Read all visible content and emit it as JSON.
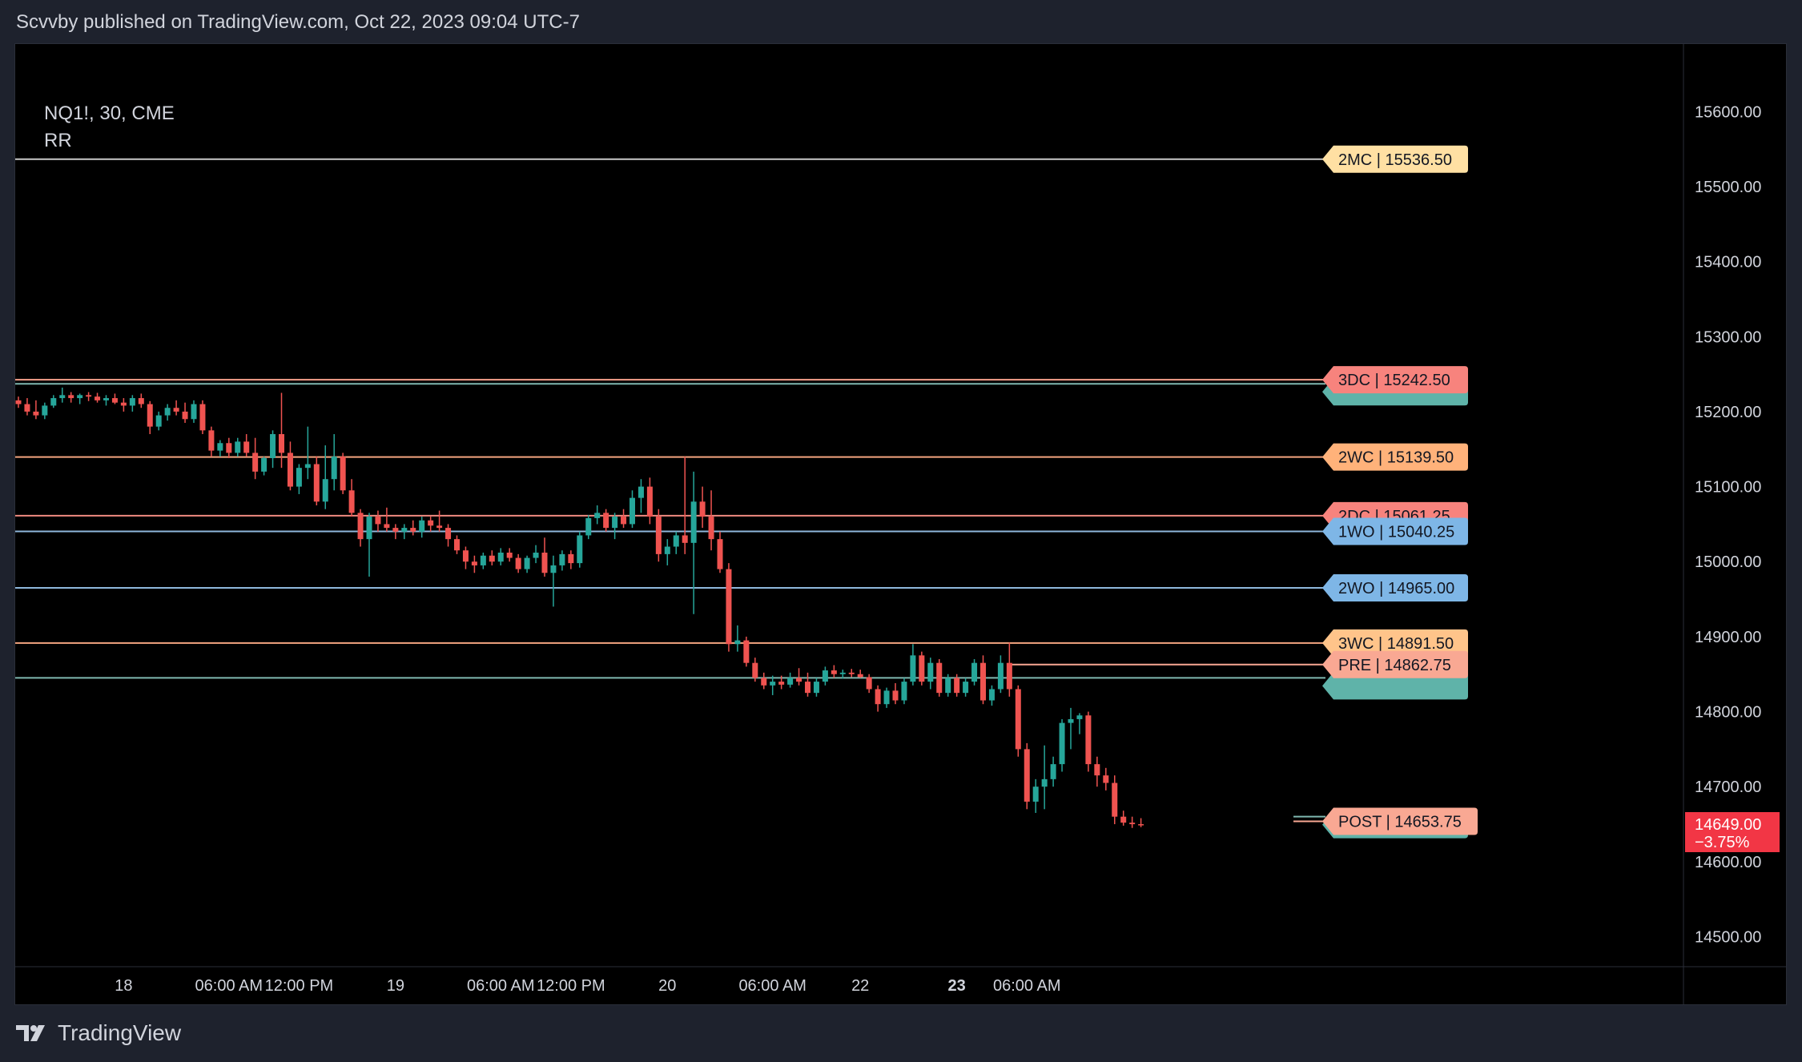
{
  "header": {
    "publish_line": "Scvvby published on TradingView.com, Oct 22, 2023 09:04 UTC-7"
  },
  "legend": {
    "symbol_line": "NQ1!, 30, CME",
    "indicator": "RR"
  },
  "footer": {
    "brand": "TradingView"
  },
  "colors": {
    "background": "#000000",
    "frame": "#1e222d",
    "up": "#26a69a",
    "down": "#ef5350",
    "axis_text": "#d1d4dc",
    "grid_border": "#2a2e39"
  },
  "chart_data": {
    "type": "candlestick",
    "symbol": "NQ1!",
    "interval": "30",
    "exchange": "CME",
    "ylim": [
      14460,
      15690
    ],
    "y_ticks": [
      14500,
      14600,
      14700,
      14800,
      14900,
      15000,
      15100,
      15200,
      15300,
      15400,
      15500,
      15600
    ],
    "y_tick_labels": [
      "14500.00",
      "14600.00",
      "14700.00",
      "14800.00",
      "14900.00",
      "15000.00",
      "15100.00",
      "15200.00",
      "15300.00",
      "15400.00",
      "15500.00",
      "15600.00"
    ],
    "x_ticks": [
      {
        "label": "18",
        "bold": false
      },
      {
        "label": "06:00 AM",
        "bold": false
      },
      {
        "label": "12:00 PM",
        "bold": false
      },
      {
        "label": "19",
        "bold": false
      },
      {
        "label": "06:00 AM",
        "bold": false
      },
      {
        "label": "12:00 PM",
        "bold": false
      },
      {
        "label": "20",
        "bold": false
      },
      {
        "label": "06:00 AM",
        "bold": false
      },
      {
        "label": "22",
        "bold": false
      },
      {
        "label": "23",
        "bold": true
      },
      {
        "label": "06:00 AM",
        "bold": false
      }
    ],
    "x_tick_bar_index": [
      12,
      24,
      32,
      43,
      55,
      63,
      74,
      86,
      96,
      107,
      115
    ],
    "current_price": {
      "value": 14649.0,
      "label": "14649.00",
      "change_label": "−3.75%",
      "color": "#f23645"
    },
    "levels": [
      {
        "name": "2MC",
        "value": 15536.5,
        "label": "2MC | 15536.50",
        "color": "#ffe0a3",
        "line_color": "#c8c8c8",
        "label_shown": true
      },
      {
        "name": "3DC",
        "value": 15242.5,
        "label": "3DC | 15242.50",
        "color": "#f7837d",
        "line_color": "#f7a08b",
        "label_shown": true
      },
      {
        "name": "teal-upper",
        "value": 15237.0,
        "label": "",
        "color": "#5fb3a9",
        "line_color": "#7fb8b0",
        "label_shown": false
      },
      {
        "name": "2WC",
        "value": 15139.5,
        "label": "2WC | 15139.50",
        "color": "#ffb27a",
        "line_color": "#f4a580",
        "label_shown": true
      },
      {
        "name": "2DC",
        "value": 15061.25,
        "label": "2DC | 15061.25",
        "color": "#f7837d",
        "line_color": "#f08a80",
        "label_shown": true
      },
      {
        "name": "1WO",
        "value": 15040.25,
        "label": "1WO | 15040.25",
        "color": "#7eb6e6",
        "line_color": "#8fb8dc",
        "label_shown": true
      },
      {
        "name": "2WO",
        "value": 14965.0,
        "label": "2WO | 14965.00",
        "color": "#7eb6e6",
        "line_color": "#8fb8dc",
        "label_shown": true
      },
      {
        "name": "3WC",
        "value": 14891.5,
        "label": "3WC | 14891.50",
        "color": "#ffc48a",
        "line_color": "#f4a580",
        "label_shown": true
      },
      {
        "name": "PRE",
        "value": 14862.75,
        "label": "PRE | 14862.75",
        "color": "#f9a893",
        "line_color": "#f9a893",
        "label_shown": true
      },
      {
        "name": "teal-lower",
        "value": 14845.0,
        "label": "",
        "color": "#5fb3a9",
        "line_color": "#7fb8b0",
        "label_shown": false
      },
      {
        "name": "teal-post",
        "value": 14660.0,
        "label": "",
        "color": "#5fb3a9",
        "line_color": "#7fb8b0",
        "label_shown": false
      },
      {
        "name": "POST",
        "value": 14653.75,
        "label": "POST | 14653.75",
        "color": "#f9a893",
        "line_color": "#f9a893",
        "label_shown": true
      }
    ],
    "candles": [
      [
        15215,
        15220,
        15205,
        15210
      ],
      [
        15210,
        15218,
        15195,
        15200
      ],
      [
        15200,
        15215,
        15190,
        15195
      ],
      [
        15195,
        15212,
        15190,
        15208
      ],
      [
        15208,
        15222,
        15205,
        15218
      ],
      [
        15218,
        15232,
        15212,
        15222
      ],
      [
        15222,
        15226,
        15212,
        15218
      ],
      [
        15218,
        15224,
        15210,
        15222
      ],
      [
        15222,
        15226,
        15214,
        15220
      ],
      [
        15220,
        15225,
        15212,
        15215
      ],
      [
        15215,
        15222,
        15208,
        15218
      ],
      [
        15218,
        15224,
        15210,
        15212
      ],
      [
        15212,
        15218,
        15200,
        15208
      ],
      [
        15208,
        15222,
        15200,
        15218
      ],
      [
        15218,
        15224,
        15205,
        15210
      ],
      [
        15210,
        15214,
        15170,
        15180
      ],
      [
        15180,
        15200,
        15175,
        15195
      ],
      [
        15195,
        15210,
        15188,
        15205
      ],
      [
        15205,
        15215,
        15195,
        15200
      ],
      [
        15200,
        15212,
        15185,
        15190
      ],
      [
        15190,
        15215,
        15185,
        15210
      ],
      [
        15210,
        15215,
        15170,
        15175
      ],
      [
        15175,
        15180,
        15140,
        15148
      ],
      [
        15148,
        15162,
        15140,
        15158
      ],
      [
        15158,
        15165,
        15138,
        15145
      ],
      [
        15145,
        15165,
        15140,
        15160
      ],
      [
        15160,
        15170,
        15140,
        15145
      ],
      [
        15145,
        15165,
        15110,
        15120
      ],
      [
        15120,
        15140,
        15115,
        15138
      ],
      [
        15138,
        15175,
        15125,
        15170
      ],
      [
        15170,
        15225,
        15125,
        15145
      ],
      [
        15145,
        15160,
        15095,
        15100
      ],
      [
        15100,
        15130,
        15090,
        15125
      ],
      [
        15125,
        15180,
        15110,
        15130
      ],
      [
        15130,
        15140,
        15075,
        15080
      ],
      [
        15080,
        15155,
        15070,
        15110
      ],
      [
        15110,
        15170,
        15095,
        15140
      ],
      [
        15140,
        15145,
        15090,
        15095
      ],
      [
        15095,
        15110,
        15060,
        15065
      ],
      [
        15065,
        15070,
        15020,
        15030
      ],
      [
        15030,
        15065,
        14980,
        15060
      ],
      [
        15060,
        15068,
        15040,
        15050
      ],
      [
        15050,
        15072,
        15040,
        15045
      ],
      [
        15045,
        15050,
        15030,
        15040
      ],
      [
        15040,
        15050,
        15030,
        15045
      ],
      [
        15045,
        15055,
        15035,
        15040
      ],
      [
        15040,
        15060,
        15032,
        15055
      ],
      [
        15055,
        15060,
        15040,
        15048
      ],
      [
        15048,
        15068,
        15040,
        15045
      ],
      [
        15045,
        15050,
        15020,
        15030
      ],
      [
        15030,
        15035,
        15010,
        15015
      ],
      [
        15015,
        15020,
        14990,
        15000
      ],
      [
        15000,
        15008,
        14985,
        14995
      ],
      [
        14995,
        15012,
        14990,
        15008
      ],
      [
        15008,
        15015,
        14995,
        15000
      ],
      [
        15000,
        15018,
        14995,
        15012
      ],
      [
        15012,
        15018,
        15000,
        15005
      ],
      [
        15005,
        15010,
        14985,
        14990
      ],
      [
        14990,
        15008,
        14985,
        15005
      ],
      [
        15005,
        15022,
        14998,
        15012
      ],
      [
        15012,
        15032,
        14980,
        14985
      ],
      [
        14985,
        15008,
        14940,
        14995
      ],
      [
        14995,
        15015,
        14988,
        15010
      ],
      [
        15010,
        15015,
        14990,
        14998
      ],
      [
        14998,
        15040,
        14992,
        15035
      ],
      [
        15035,
        15062,
        15030,
        15058
      ],
      [
        15058,
        15075,
        15050,
        15065
      ],
      [
        15065,
        15070,
        15040,
        15045
      ],
      [
        15045,
        15065,
        15030,
        15060
      ],
      [
        15060,
        15070,
        15045,
        15050
      ],
      [
        15050,
        15095,
        15045,
        15085
      ],
      [
        15085,
        15110,
        15065,
        15100
      ],
      [
        15100,
        15112,
        15050,
        15060
      ],
      [
        15060,
        15070,
        15000,
        15010
      ],
      [
        15010,
        15030,
        14995,
        15020
      ],
      [
        15020,
        15040,
        15010,
        15035
      ],
      [
        15035,
        15140,
        15010,
        15025
      ],
      [
        15025,
        15120,
        14930,
        15080
      ],
      [
        15080,
        15100,
        15045,
        15060
      ],
      [
        15060,
        15095,
        15015,
        15030
      ],
      [
        15030,
        15040,
        14985,
        14990
      ],
      [
        14990,
        14998,
        14880,
        14890
      ],
      [
        14890,
        14915,
        14880,
        14895
      ],
      [
        14895,
        14900,
        14860,
        14865
      ],
      [
        14865,
        14872,
        14840,
        14845
      ],
      [
        14845,
        14852,
        14830,
        14835
      ],
      [
        14835,
        14848,
        14822,
        14840
      ],
      [
        14840,
        14848,
        14830,
        14836
      ],
      [
        14836,
        14852,
        14832,
        14845
      ],
      [
        14845,
        14858,
        14835,
        14840
      ],
      [
        14840,
        14852,
        14820,
        14825
      ],
      [
        14825,
        14845,
        14820,
        14840
      ],
      [
        14840,
        14860,
        14835,
        14855
      ],
      [
        14855,
        14862,
        14845,
        14850
      ],
      [
        14850,
        14856,
        14844,
        14852
      ],
      [
        14852,
        14857,
        14846,
        14850
      ],
      [
        14850,
        14856,
        14845,
        14846
      ],
      [
        14846,
        14850,
        14825,
        14830
      ],
      [
        14830,
        14835,
        14800,
        14810
      ],
      [
        14810,
        14832,
        14805,
        14828
      ],
      [
        14828,
        14838,
        14810,
        14815
      ],
      [
        14815,
        14845,
        14810,
        14840
      ],
      [
        14840,
        14890,
        14835,
        14875
      ],
      [
        14875,
        14880,
        14835,
        14840
      ],
      [
        14840,
        14872,
        14830,
        14865
      ],
      [
        14865,
        14870,
        14820,
        14825
      ],
      [
        14825,
        14850,
        14820,
        14845
      ],
      [
        14845,
        14850,
        14820,
        14825
      ],
      [
        14825,
        14845,
        14820,
        14840
      ],
      [
        14840,
        14870,
        14835,
        14865
      ],
      [
        14865,
        14875,
        14810,
        14815
      ],
      [
        14815,
        14835,
        14808,
        14830
      ],
      [
        14830,
        14875,
        14825,
        14865
      ],
      [
        14865,
        14892,
        14820,
        14830
      ],
      [
        14830,
        14835,
        14740,
        14750
      ],
      [
        14750,
        14758,
        14670,
        14680
      ],
      [
        14680,
        14710,
        14665,
        14700
      ],
      [
        14700,
        14755,
        14670,
        14710
      ],
      [
        14710,
        14740,
        14700,
        14730
      ],
      [
        14730,
        14790,
        14720,
        14785
      ],
      [
        14785,
        14805,
        14750,
        14790
      ],
      [
        14790,
        14798,
        14770,
        14795
      ],
      [
        14795,
        14800,
        14720,
        14730
      ],
      [
        14730,
        14740,
        14700,
        14715
      ],
      [
        14715,
        14725,
        14695,
        14705
      ],
      [
        14705,
        14715,
        14650,
        14660
      ],
      [
        14660,
        14668,
        14648,
        14652
      ],
      [
        14652,
        14660,
        14645,
        14650
      ],
      [
        14650,
        14658,
        14646,
        14649
      ]
    ]
  }
}
